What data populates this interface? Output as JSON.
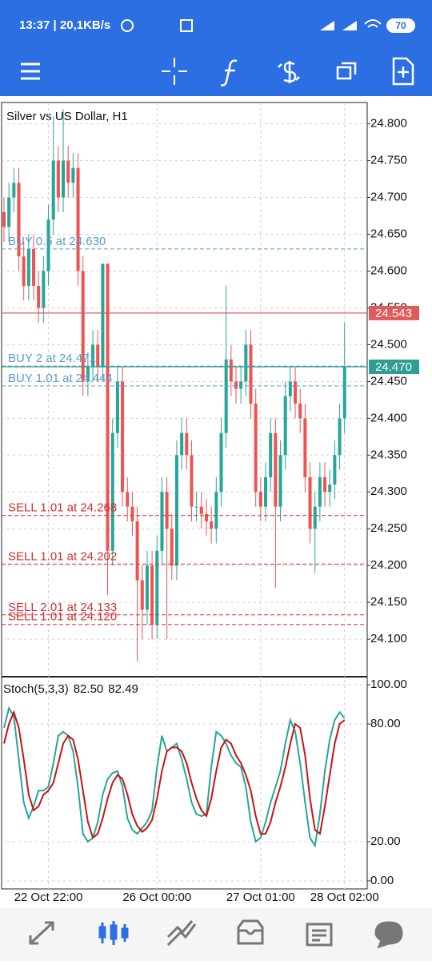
{
  "status_bar": {
    "time": "13:37 | 20,1KB/s",
    "battery": 70
  },
  "chart_data": [
    {
      "type": "candlestick",
      "title": "Silver vs US Dollar, H1",
      "categories": [
        null,
        null,
        null,
        null,
        null,
        null,
        null,
        null,
        null,
        "22 Oct 22:00",
        null,
        null,
        null,
        null,
        null,
        null,
        null,
        null,
        null,
        null,
        null,
        null,
        null,
        null,
        null,
        null,
        null,
        null,
        null,
        null,
        null,
        "26 Oct 00:00",
        null,
        null,
        null,
        null,
        null,
        null,
        null,
        null,
        null,
        null,
        null,
        null,
        null,
        null,
        null,
        null,
        null,
        null,
        null,
        null,
        "27 Oct 01:00",
        null,
        null,
        null,
        null,
        null,
        null,
        null,
        null,
        null,
        null,
        null,
        null,
        null,
        null,
        null,
        null,
        "28 Oct 02:00"
      ],
      "open": [
        24.68,
        24.66,
        24.7,
        24.72,
        24.62,
        24.58,
        24.63,
        24.58,
        24.55,
        24.6,
        24.67,
        24.75,
        24.7,
        24.75,
        24.72,
        24.74,
        24.6,
        24.45,
        24.47,
        24.5,
        24.47,
        24.61,
        24.22,
        24.38,
        24.45,
        24.3,
        24.28,
        24.26,
        24.18,
        24.14,
        24.2,
        24.12,
        24.22,
        24.3,
        24.25,
        24.2,
        24.35,
        24.38,
        24.35,
        24.28,
        24.28,
        24.27,
        24.26,
        24.25,
        24.3,
        24.38,
        24.48,
        24.45,
        24.44,
        24.45,
        24.5,
        24.42,
        24.3,
        24.28,
        24.32,
        24.38,
        24.28,
        24.35,
        24.43,
        24.45,
        24.42,
        24.4,
        24.32,
        24.25,
        24.28,
        24.32,
        24.3,
        24.31,
        24.35,
        24.4
      ],
      "high": [
        24.7,
        24.72,
        24.74,
        24.74,
        24.64,
        24.65,
        24.65,
        24.6,
        24.62,
        24.69,
        24.81,
        24.77,
        24.82,
        24.77,
        24.76,
        24.76,
        24.62,
        24.49,
        24.52,
        24.52,
        24.61,
        24.61,
        24.4,
        24.47,
        24.47,
        24.32,
        24.3,
        24.28,
        24.2,
        24.22,
        24.22,
        24.24,
        24.32,
        24.32,
        24.27,
        24.37,
        24.4,
        24.4,
        24.37,
        24.3,
        24.3,
        24.29,
        24.28,
        24.32,
        24.4,
        24.58,
        24.5,
        24.47,
        24.47,
        24.52,
        24.52,
        24.44,
        24.32,
        24.34,
        24.4,
        24.4,
        24.37,
        24.45,
        24.47,
        24.47,
        24.44,
        24.42,
        24.34,
        24.3,
        24.34,
        24.34,
        24.33,
        24.37,
        24.42,
        24.53
      ],
      "low": [
        24.64,
        24.64,
        24.68,
        24.6,
        24.56,
        24.56,
        24.56,
        24.53,
        24.53,
        24.58,
        24.65,
        24.68,
        24.68,
        24.7,
        24.7,
        24.58,
        24.43,
        24.43,
        24.45,
        24.45,
        24.45,
        24.16,
        24.2,
        24.36,
        24.28,
        24.26,
        24.24,
        24.07,
        24.1,
        24.12,
        24.1,
        24.1,
        24.2,
        24.1,
        24.18,
        24.18,
        24.33,
        24.33,
        24.26,
        24.26,
        24.25,
        24.24,
        24.23,
        24.23,
        24.28,
        24.36,
        24.43,
        24.42,
        24.42,
        24.43,
        24.4,
        24.28,
        24.26,
        24.26,
        24.3,
        24.17,
        24.26,
        24.33,
        24.41,
        24.4,
        24.38,
        24.3,
        24.23,
        24.19,
        24.26,
        24.28,
        24.28,
        24.29,
        24.33,
        24.38
      ],
      "close": [
        24.66,
        24.7,
        24.72,
        24.62,
        24.58,
        24.63,
        24.58,
        24.55,
        24.6,
        24.67,
        24.75,
        24.7,
        24.75,
        24.72,
        24.74,
        24.6,
        24.45,
        24.47,
        24.5,
        24.47,
        24.61,
        24.22,
        24.38,
        24.45,
        24.3,
        24.28,
        24.26,
        24.18,
        24.14,
        24.2,
        24.12,
        24.22,
        24.3,
        24.25,
        24.2,
        24.35,
        24.38,
        24.35,
        24.28,
        24.28,
        24.27,
        24.26,
        24.25,
        24.3,
        24.38,
        24.48,
        24.45,
        24.44,
        24.45,
        24.5,
        24.42,
        24.3,
        24.28,
        24.32,
        24.38,
        24.28,
        24.35,
        24.43,
        24.45,
        24.42,
        24.4,
        24.32,
        24.25,
        24.28,
        24.32,
        24.3,
        24.31,
        24.35,
        24.4,
        24.47
      ],
      "up_color": "#26a69a",
      "down_color": "#ef5350",
      "ylim": [
        24.049,
        24.829
      ],
      "yticks": [
        {
          "value": 24.8,
          "label": "24.800"
        },
        {
          "value": 24.75,
          "label": "24.750"
        },
        {
          "value": 24.7,
          "label": "24.700"
        },
        {
          "value": 24.65,
          "label": "24.650"
        },
        {
          "value": 24.6,
          "label": "24.600"
        },
        {
          "value": 24.55,
          "label": "24.550"
        },
        {
          "value": 24.5,
          "label": "24.500"
        },
        {
          "value": 24.45,
          "label": "24.450"
        },
        {
          "value": 24.4,
          "label": "24.400"
        },
        {
          "value": 24.35,
          "label": "24.350"
        },
        {
          "value": 24.3,
          "label": "24.300"
        },
        {
          "value": 24.25,
          "label": "24.250"
        },
        {
          "value": 24.2,
          "label": "24.200"
        },
        {
          "value": 24.15,
          "label": "24.150"
        },
        {
          "value": 24.1,
          "label": "24.100"
        }
      ],
      "grid": true,
      "orders": [
        {
          "label": "BUY 0.5 at 24.630",
          "value": 24.63,
          "color": "#5b9bd5"
        },
        {
          "label": "BUY 2 at 24.471",
          "value": 24.471,
          "color": "#5b9bd5"
        },
        {
          "label": "BUY 1.01 at 24.444",
          "value": 24.444,
          "color": "#5b9bd5"
        },
        {
          "label": "SELL 1.01 at 24.268",
          "value": 24.268,
          "color": "#d32f2f"
        },
        {
          "label": "SELL 1.01 at 24.202",
          "value": 24.202,
          "color": "#d32f2f"
        },
        {
          "label": "SELL 2.01 at 24.133",
          "value": 24.133,
          "color": "#d32f2f"
        },
        {
          "label": "SELL 1.01 at 24.120",
          "value": 24.12,
          "color": "#d32f2f"
        }
      ],
      "price_lines": [
        {
          "label": "24.543",
          "value": 24.543,
          "color": "#e05a5a"
        },
        {
          "label": "24.470",
          "value": 24.47,
          "color": "#2e9e93"
        }
      ]
    },
    {
      "type": "line",
      "title": "Stoch(5,3,3)",
      "series": [
        {
          "name": "82.50",
          "color": "#26a69a",
          "values": [
            78,
            88,
            84,
            62,
            40,
            32,
            38,
            46,
            46,
            48,
            60,
            74,
            76,
            74,
            66,
            48,
            24,
            20,
            22,
            30,
            44,
            52,
            55,
            56,
            48,
            32,
            26,
            24,
            27,
            30,
            36,
            58,
            74,
            66,
            68,
            70,
            62,
            52,
            40,
            34,
            33,
            34,
            58,
            76,
            74,
            70,
            64,
            60,
            58,
            48,
            30,
            20,
            22,
            30,
            40,
            48,
            56,
            70,
            82,
            76,
            60,
            40,
            22,
            18,
            34,
            56,
            72,
            82,
            86,
            83
          ]
        },
        {
          "name": "82.49",
          "color": "#cc1111",
          "values": [
            70,
            80,
            86,
            78,
            62,
            44,
            36,
            38,
            44,
            46,
            50,
            60,
            70,
            74,
            72,
            62,
            46,
            30,
            22,
            24,
            32,
            42,
            50,
            54,
            52,
            44,
            34,
            28,
            25,
            27,
            31,
            42,
            56,
            66,
            68,
            68,
            66,
            60,
            50,
            42,
            36,
            33,
            42,
            56,
            68,
            72,
            70,
            64,
            60,
            54,
            46,
            33,
            24,
            24,
            30,
            40,
            48,
            58,
            70,
            80,
            78,
            64,
            42,
            26,
            24,
            38,
            54,
            70,
            80,
            82
          ]
        }
      ],
      "ylim": [
        -4.1,
        104.1
      ],
      "yticks": [
        {
          "value": 100,
          "label": "100.00"
        },
        {
          "value": 80,
          "label": "80.00"
        },
        {
          "value": 20,
          "label": "20.00"
        },
        {
          "value": 0,
          "label": "0.00"
        }
      ],
      "grid": true
    }
  ]
}
